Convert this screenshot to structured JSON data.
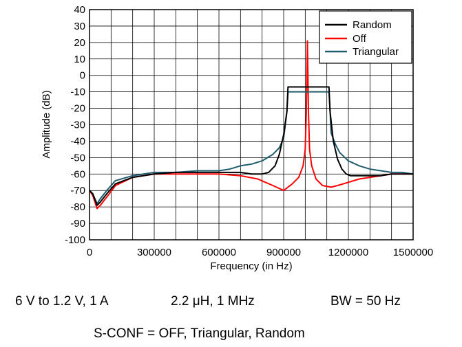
{
  "chart_data": {
    "type": "line",
    "title": "",
    "xlabel": "Frequency (in Hz)",
    "ylabel": "Amplitude (dB)",
    "xlim": [
      0,
      1500000
    ],
    "ylim": [
      -100,
      40
    ],
    "x_ticks": [
      0,
      300000,
      600000,
      900000,
      1200000,
      1500000
    ],
    "x_tick_labels": [
      "0",
      "300000",
      "600000",
      "900000",
      "1200000",
      "1500000"
    ],
    "y_ticks": [
      -100,
      -90,
      -80,
      -70,
      -60,
      -50,
      -40,
      -30,
      -20,
      -10,
      0,
      10,
      20,
      30,
      40
    ],
    "y_tick_labels": [
      "-100",
      "-90",
      "-80",
      "-70",
      "-60",
      "-50",
      "-40",
      "-30",
      "-20",
      "-10",
      "0",
      "10",
      "20",
      "30",
      "40"
    ],
    "x_minor_step": 100000,
    "grid": true,
    "legend_position": "top-right",
    "series": [
      {
        "name": "Random",
        "color": "#000000",
        "x": [
          0,
          15000,
          35000,
          50000,
          80000,
          120000,
          200000,
          300000,
          400000,
          500000,
          600000,
          700000,
          750000,
          800000,
          830000,
          860000,
          880000,
          900000,
          915000,
          920000,
          960000,
          1000000,
          1040000,
          1080000,
          1110000,
          1115000,
          1130000,
          1150000,
          1170000,
          1190000,
          1210000,
          1240000,
          1280000,
          1350000,
          1400000,
          1450000,
          1500000
        ],
        "y": [
          -70,
          -72,
          -79,
          -77,
          -72,
          -66,
          -62,
          -60,
          -59,
          -59,
          -59,
          -59,
          -60,
          -60,
          -59,
          -55,
          -48,
          -36,
          -22,
          -7,
          -7,
          -7,
          -7,
          -7,
          -7,
          -22,
          -40,
          -51,
          -57,
          -60,
          -61,
          -61,
          -61,
          -61,
          -60,
          -60,
          -60
        ]
      },
      {
        "name": "Off",
        "color": "#ff0000",
        "x": [
          0,
          15000,
          35000,
          50000,
          80000,
          120000,
          200000,
          300000,
          400000,
          500000,
          600000,
          700000,
          780000,
          850000,
          900000,
          940000,
          970000,
          990000,
          1000000,
          1005000,
          1010000,
          1015000,
          1020000,
          1030000,
          1050000,
          1080000,
          1120000,
          1150000,
          1200000,
          1250000,
          1300000,
          1350000,
          1400000,
          1450000,
          1500000
        ],
        "y": [
          -70,
          -73,
          -81,
          -79,
          -74,
          -67,
          -62,
          -60,
          -60,
          -60,
          -60,
          -61,
          -63,
          -67,
          -70,
          -66,
          -62,
          -55,
          -45,
          -22,
          21,
          -22,
          -45,
          -55,
          -63,
          -67,
          -68,
          -67,
          -65,
          -63,
          -62,
          -61,
          -60,
          -60,
          -60
        ]
      },
      {
        "name": "Triangular",
        "color": "#1f5c6e",
        "x": [
          0,
          15000,
          35000,
          50000,
          80000,
          120000,
          200000,
          300000,
          400000,
          500000,
          600000,
          650000,
          700000,
          750000,
          800000,
          850000,
          880000,
          900000,
          915000,
          920000,
          960000,
          1000000,
          1040000,
          1080000,
          1110000,
          1115000,
          1120000,
          1140000,
          1160000,
          1200000,
          1250000,
          1300000,
          1350000,
          1400000,
          1450000,
          1500000
        ],
        "y": [
          -70,
          -72,
          -78,
          -75,
          -70,
          -64,
          -61,
          -59,
          -59,
          -58,
          -58,
          -57,
          -55,
          -54,
          -52,
          -48,
          -44,
          -38,
          -22,
          -10,
          -10,
          -10,
          -10,
          -10,
          -10,
          -22,
          -35,
          -42,
          -47,
          -52,
          -55,
          -57,
          -58,
          -59,
          -59,
          -60
        ]
      }
    ]
  },
  "footnotes": {
    "line1_left": "6 V to 1.2 V, 1 A",
    "line1_middle": "2.2 μH, 1 MHz",
    "line1_right": "BW = 50 Hz",
    "line2": "S-CONF = OFF, Triangular, Random"
  }
}
